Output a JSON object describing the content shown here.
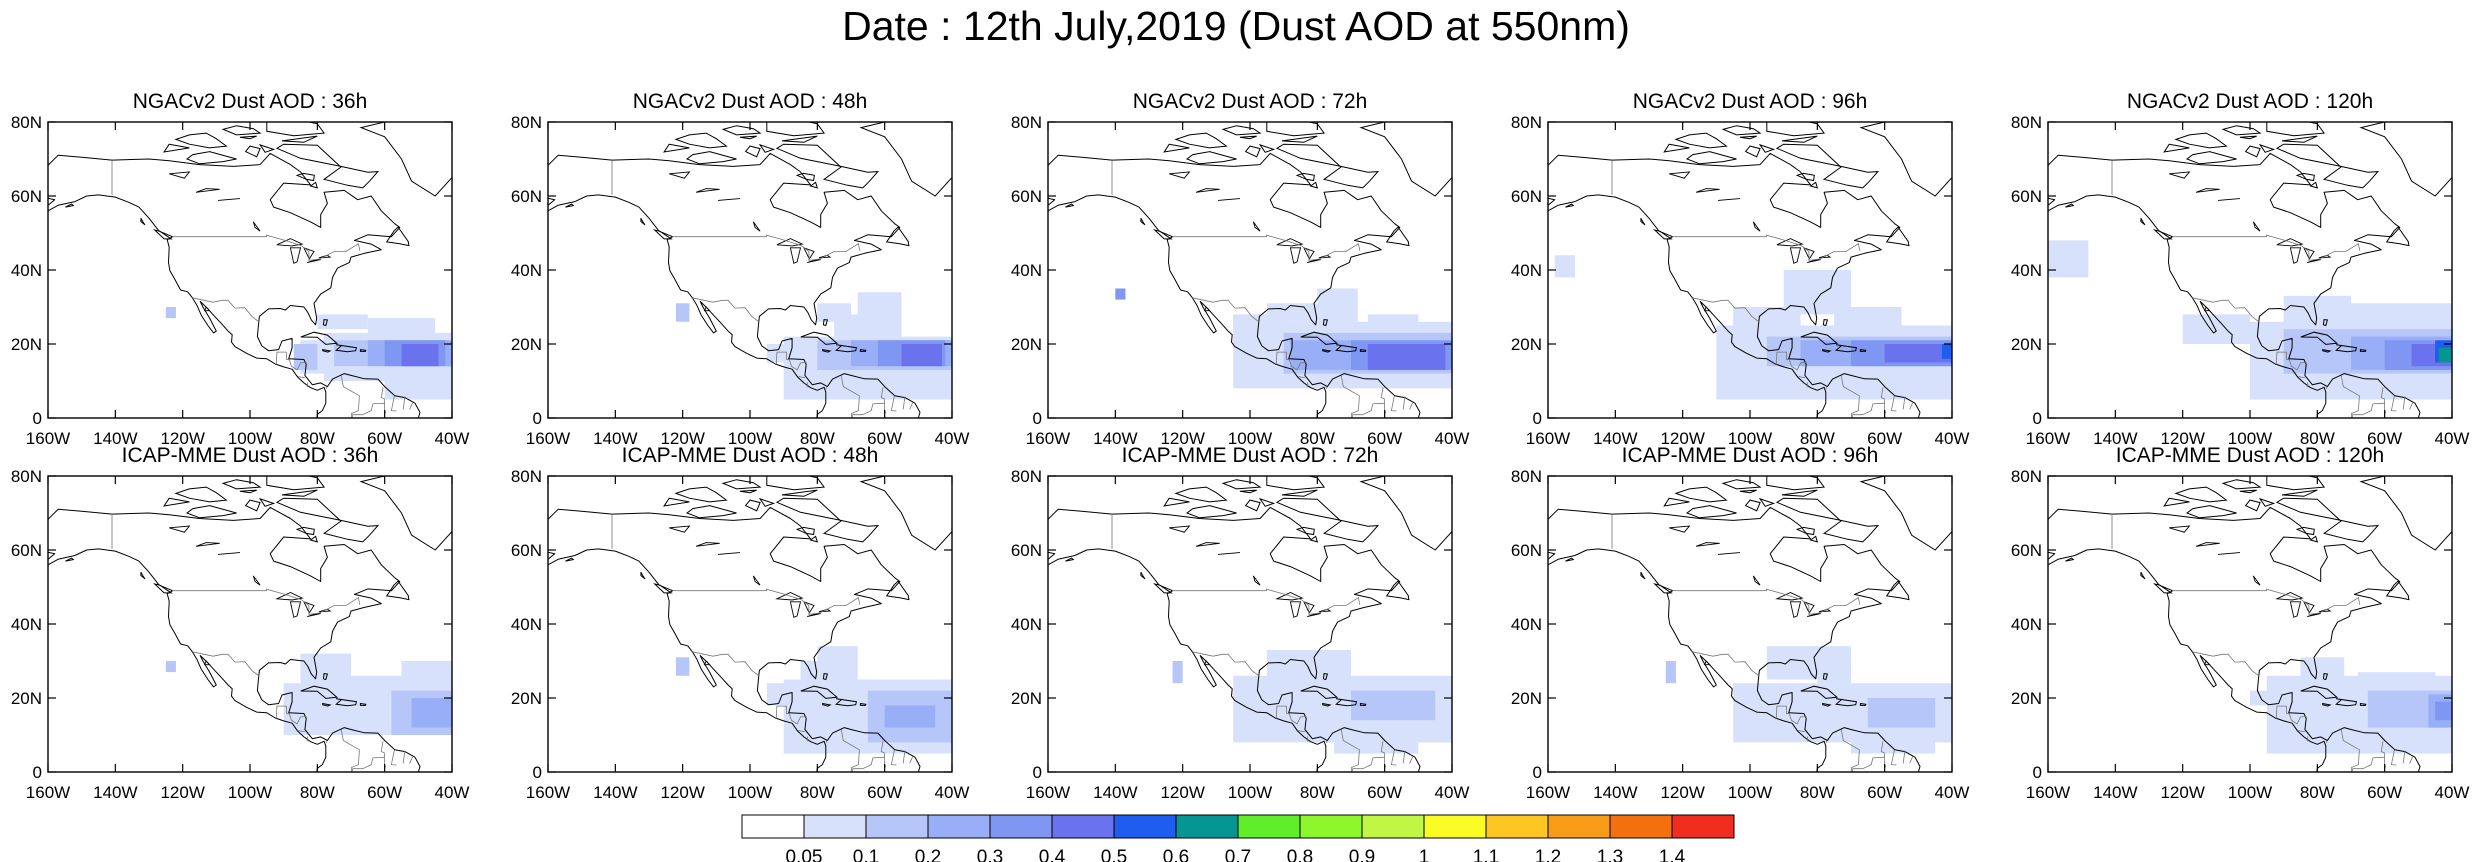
{
  "title": "Date : 12th July,2019 (Dust AOD at 550nm)",
  "panels": [
    {
      "title": "NGACv2 Dust AOD : 36h",
      "model": "NGACv2",
      "lead": "36h"
    },
    {
      "title": "NGACv2 Dust AOD : 48h",
      "model": "NGACv2",
      "lead": "48h"
    },
    {
      "title": "NGACv2 Dust AOD : 72h",
      "model": "NGACv2",
      "lead": "72h"
    },
    {
      "title": "NGACv2 Dust AOD : 96h",
      "model": "NGACv2",
      "lead": "96h"
    },
    {
      "title": "NGACv2 Dust AOD : 120h",
      "model": "NGACv2",
      "lead": "120h"
    },
    {
      "title": "ICAP-MME Dust AOD : 36h",
      "model": "ICAP-MME",
      "lead": "36h"
    },
    {
      "title": "ICAP-MME Dust AOD : 48h",
      "model": "ICAP-MME",
      "lead": "48h"
    },
    {
      "title": "ICAP-MME Dust AOD : 72h",
      "model": "ICAP-MME",
      "lead": "72h"
    },
    {
      "title": "ICAP-MME Dust AOD : 96h",
      "model": "ICAP-MME",
      "lead": "96h"
    },
    {
      "title": "ICAP-MME Dust AOD : 120h",
      "model": "ICAP-MME",
      "lead": "120h"
    }
  ],
  "map": {
    "lon_range": [
      -160,
      -40
    ],
    "lat_range": [
      0,
      80
    ],
    "x_ticks": [
      "160W",
      "140W",
      "120W",
      "100W",
      "80W",
      "60W",
      "40W"
    ],
    "y_ticks": [
      "0",
      "20N",
      "40N",
      "60N",
      "80N"
    ]
  },
  "colorbar": {
    "levels": [
      "0.05",
      "0.1",
      "0.2",
      "0.3",
      "0.4",
      "0.5",
      "0.6",
      "0.7",
      "0.8",
      "0.9",
      "1",
      "1.1",
      "1.2",
      "1.3",
      "1.4"
    ],
    "colors": [
      "#ffffff",
      "#d7e1fb",
      "#b7c6f8",
      "#98aef6",
      "#7f96f2",
      "#6a72ee",
      "#1f5cf0",
      "#059593",
      "#60ed2a",
      "#8df72c",
      "#c0f745",
      "#fbfc26",
      "#fdc521",
      "#f89c18",
      "#f46f0d",
      "#f12d1f"
    ]
  }
}
